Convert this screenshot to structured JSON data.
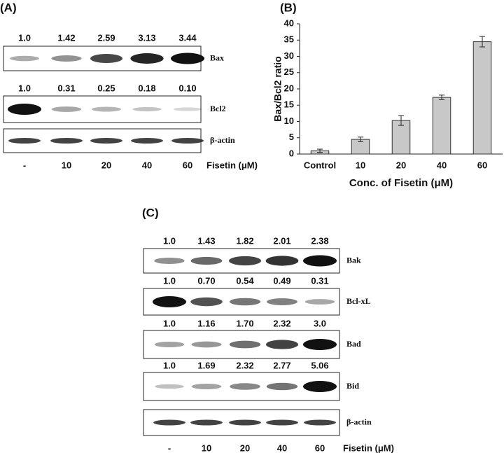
{
  "panel_a": {
    "label": "(A)",
    "blots": [
      {
        "name": "Bax",
        "values": [
          "1.0",
          "1.42",
          "2.59",
          "3.13",
          "3.44"
        ]
      },
      {
        "name": "Bcl2",
        "values": [
          "1.0",
          "0.31",
          "0.25",
          "0.18",
          "0.10"
        ]
      },
      {
        "name": "β-actin"
      }
    ],
    "lanes": [
      "-",
      "10",
      "20",
      "40",
      "60"
    ],
    "treatment": "Fisetin (μM)"
  },
  "chart_data": {
    "type": "bar",
    "panel_label": "(B)",
    "categories": [
      "Control",
      "10",
      "20",
      "40",
      "60"
    ],
    "values": [
      1.0,
      4.5,
      10.3,
      17.4,
      34.5
    ],
    "errors": [
      0.5,
      0.7,
      1.5,
      0.7,
      1.6
    ],
    "color": "#c8c8c8",
    "ylim": [
      0,
      40
    ],
    "yticks": [
      0,
      5,
      10,
      15,
      20,
      25,
      30,
      35,
      40
    ],
    "grid": false,
    "xlabel": "Conc. of Fisetin (μM)",
    "ylabel": "Bax/Bcl2 ratio"
  },
  "panel_c": {
    "label": "(C)",
    "blots": [
      {
        "name": "Bak",
        "values": [
          "1.0",
          "1.43",
          "1.82",
          "2.01",
          "2.38"
        ]
      },
      {
        "name": "Bcl-xL",
        "values": [
          "1.0",
          "0.70",
          "0.54",
          "0.49",
          "0.31"
        ]
      },
      {
        "name": "Bad",
        "values": [
          "1.0",
          "1.16",
          "1.70",
          "2.32",
          "3.0"
        ]
      },
      {
        "name": "Bid",
        "values": [
          "1.0",
          "1.69",
          "2.32",
          "2.77",
          "5.06"
        ]
      },
      {
        "name": "β-actin"
      }
    ],
    "lanes": [
      "-",
      "10",
      "20",
      "40",
      "60"
    ],
    "treatment": "Fisetin (μM)"
  }
}
